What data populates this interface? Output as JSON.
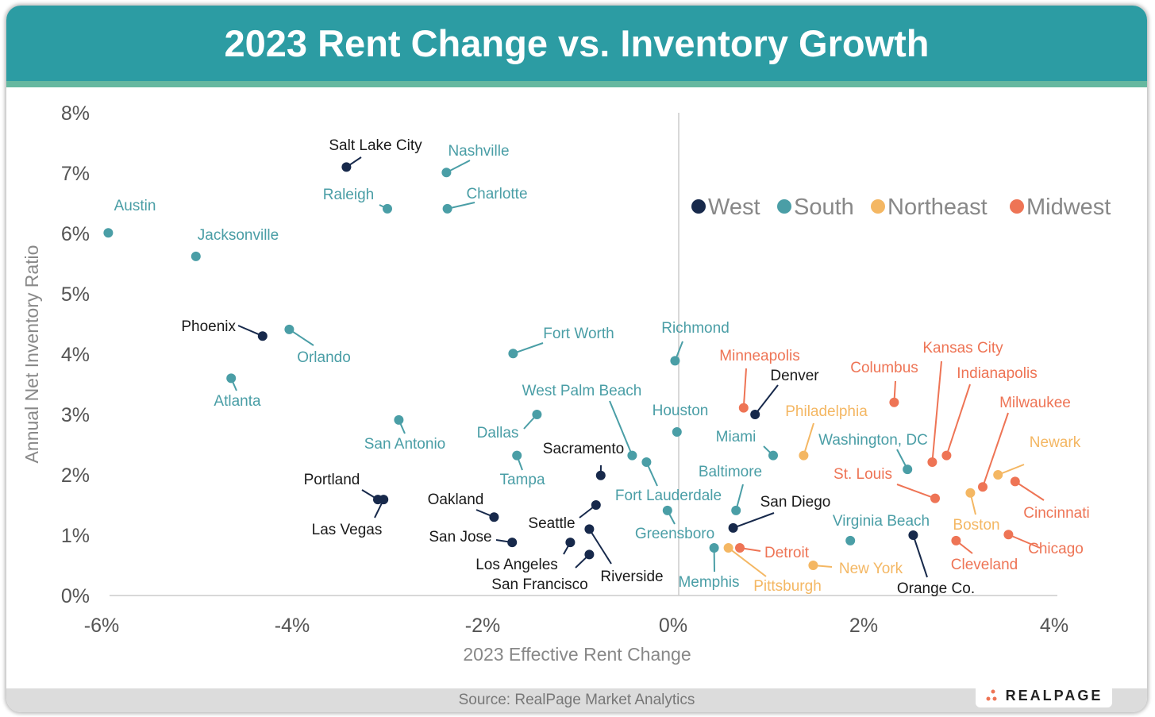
{
  "chart_data": {
    "type": "scatter",
    "title": "2023 Rent Change vs. Inventory Growth",
    "xlabel": "2023 Effective Rent Change",
    "ylabel": "Annual Net Inventory Ratio",
    "xlim": [
      -6,
      4
    ],
    "ylim": [
      0,
      8
    ],
    "xticks": [
      "-6%",
      "-4%",
      "-2%",
      "0%",
      "2%",
      "4%"
    ],
    "yticks": [
      "0%",
      "1%",
      "2%",
      "3%",
      "4%",
      "5%",
      "6%",
      "7%",
      "8%"
    ],
    "grid": false,
    "legend_position": "top-right",
    "series": [
      {
        "name": "West",
        "color": "#17294b",
        "points": [
          {
            "label": "Salt Lake City",
            "x": -3.43,
            "y": 7.1
          },
          {
            "label": "Phoenix",
            "x": -4.31,
            "y": 4.3
          },
          {
            "label": "Denver",
            "x": 0.86,
            "y": 3.0
          },
          {
            "label": "Sacramento",
            "x": -0.76,
            "y": 1.99
          },
          {
            "label": "Portland",
            "x": -3.1,
            "y": 1.59
          },
          {
            "label": "Las Vegas",
            "x": -3.04,
            "y": 1.59
          },
          {
            "label": "Oakland",
            "x": -1.88,
            "y": 1.3
          },
          {
            "label": "Seattle",
            "x": -0.81,
            "y": 1.5
          },
          {
            "label": "San Jose",
            "x": -1.69,
            "y": 0.88
          },
          {
            "label": "Los Angeles",
            "x": -1.08,
            "y": 0.88
          },
          {
            "label": "Riverside",
            "x": -0.88,
            "y": 1.1
          },
          {
            "label": "San Francisco",
            "x": -0.88,
            "y": 0.68
          },
          {
            "label": "San Diego",
            "x": 0.63,
            "y": 1.12
          },
          {
            "label": "Orange Co.",
            "x": 2.52,
            "y": 1.0
          }
        ]
      },
      {
        "name": "South",
        "color": "#4a9ea6",
        "points": [
          {
            "label": "Austin",
            "x": -5.93,
            "y": 6.01
          },
          {
            "label": "Jacksonville",
            "x": -5.01,
            "y": 5.62
          },
          {
            "label": "Nashville",
            "x": -2.38,
            "y": 7.01
          },
          {
            "label": "Raleigh",
            "x": -3.0,
            "y": 6.41
          },
          {
            "label": "Charlotte",
            "x": -2.37,
            "y": 6.41
          },
          {
            "label": "Orlando",
            "x": -4.03,
            "y": 4.41
          },
          {
            "label": "Atlanta",
            "x": -4.64,
            "y": 3.6
          },
          {
            "label": "Fort Worth",
            "x": -1.68,
            "y": 4.01
          },
          {
            "label": "Richmond",
            "x": 0.02,
            "y": 3.89
          },
          {
            "label": "San Antonio",
            "x": -2.88,
            "y": 2.91
          },
          {
            "label": "Dallas",
            "x": -1.43,
            "y": 3.0
          },
          {
            "label": "Tampa",
            "x": -1.64,
            "y": 2.32
          },
          {
            "label": "West Palm Beach",
            "x": -0.43,
            "y": 2.32
          },
          {
            "label": "Fort Lauderdale",
            "x": -0.28,
            "y": 2.21
          },
          {
            "label": "Houston",
            "x": 0.04,
            "y": 2.71
          },
          {
            "label": "Miami",
            "x": 1.05,
            "y": 2.32
          },
          {
            "label": "Washington, DC",
            "x": 2.46,
            "y": 2.09
          },
          {
            "label": "Baltimore",
            "x": 0.66,
            "y": 1.41
          },
          {
            "label": "Greensboro",
            "x": -0.06,
            "y": 1.41
          },
          {
            "label": "Virginia Beach",
            "x": 1.86,
            "y": 0.91
          },
          {
            "label": "Memphis",
            "x": 0.43,
            "y": 0.79
          }
        ]
      },
      {
        "name": "Northeast",
        "color": "#f4b763",
        "points": [
          {
            "label": "Philadelphia",
            "x": 1.37,
            "y": 2.32
          },
          {
            "label": "Pittsburgh",
            "x": 0.58,
            "y": 0.79
          },
          {
            "label": "New York",
            "x": 1.47,
            "y": 0.5
          },
          {
            "label": "Boston",
            "x": 3.12,
            "y": 1.7
          },
          {
            "label": "Newark",
            "x": 3.41,
            "y": 2.0
          }
        ]
      },
      {
        "name": "Midwest",
        "color": "#ee7455",
        "points": [
          {
            "label": "Minneapolis",
            "x": 0.74,
            "y": 3.11
          },
          {
            "label": "Columbus",
            "x": 2.32,
            "y": 3.2
          },
          {
            "label": "Kansas City",
            "x": 2.72,
            "y": 2.21
          },
          {
            "label": "Indianapolis",
            "x": 2.87,
            "y": 2.32
          },
          {
            "label": "Milwaukee",
            "x": 3.25,
            "y": 1.8
          },
          {
            "label": "Cincinnati",
            "x": 3.59,
            "y": 1.89
          },
          {
            "label": "St. Louis",
            "x": 2.75,
            "y": 1.61
          },
          {
            "label": "Detroit",
            "x": 0.7,
            "y": 0.79
          },
          {
            "label": "Cleveland",
            "x": 2.97,
            "y": 0.91
          },
          {
            "label": "Chicago",
            "x": 3.52,
            "y": 1.01
          }
        ]
      }
    ]
  },
  "footer": {
    "source": "Source: RealPage Market Analytics",
    "logo": "REALPAGE"
  }
}
